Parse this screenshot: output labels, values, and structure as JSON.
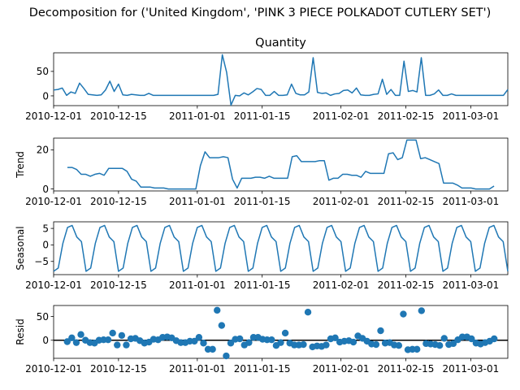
{
  "chart_data": {
    "type": "line",
    "suptitle": "Decomposition for ('United Kingdom', 'PINK 3 PIECE POLKADOT CUTLERY SET')",
    "x_ticks": [
      "2010-12-01",
      "2010-12-15",
      "2011-01-01",
      "2011-01-15",
      "2011-02-01",
      "2011-02-15",
      "2011-03-01"
    ],
    "x_range": [
      "2010-12-01",
      "2011-03-09"
    ],
    "panels": [
      {
        "name": "observed",
        "title": "Quantity",
        "ylabel": "",
        "type": "line",
        "ylim": [
          -20,
          88
        ],
        "yticks": [
          "0",
          "50"
        ],
        "values": [
          12,
          13,
          16,
          1,
          8,
          5,
          26,
          15,
          3,
          2,
          1,
          2,
          12,
          30,
          9,
          24,
          2,
          1,
          3,
          2,
          1,
          1,
          5,
          1,
          1,
          1,
          1,
          1,
          1,
          1,
          1,
          1,
          1,
          1,
          1,
          1,
          1,
          1,
          3,
          84,
          48,
          -19,
          1,
          0,
          6,
          2,
          8,
          15,
          13,
          1,
          1,
          9,
          1,
          1,
          2,
          24,
          5,
          2,
          2,
          8,
          78,
          7,
          5,
          6,
          1,
          4,
          5,
          11,
          12,
          6,
          16,
          2,
          1,
          1,
          3,
          4,
          34,
          3,
          13,
          1,
          1,
          71,
          9,
          11,
          8,
          78,
          1,
          1,
          4,
          12,
          1,
          1,
          4,
          1,
          1,
          1,
          1,
          1,
          1,
          1,
          1,
          1,
          1,
          1,
          1,
          13
        ]
      },
      {
        "name": "trend",
        "title": "",
        "ylabel": "Trend",
        "type": "line",
        "ylim": [
          -1,
          26
        ],
        "yticks": [
          "0",
          "20"
        ],
        "values": [
          null,
          null,
          null,
          11,
          11,
          10,
          7.5,
          7.5,
          6.5,
          7.5,
          8,
          7,
          10.5,
          10.5,
          10.5,
          10.5,
          9,
          5,
          4,
          1,
          1,
          1,
          0.5,
          0.5,
          0.5,
          0,
          0,
          0,
          0,
          0,
          0,
          0,
          12,
          19,
          16,
          16,
          16,
          16.5,
          16,
          5,
          0.5,
          5.5,
          5.5,
          5.5,
          6,
          6,
          5.5,
          6.5,
          5.5,
          5.5,
          5.5,
          5.5,
          16.5,
          17,
          14,
          14,
          14,
          14,
          14.5,
          14.5,
          4.5,
          5.5,
          5.5,
          7.5,
          7.5,
          7,
          7,
          6,
          9,
          8,
          8,
          8,
          8,
          18,
          18.5,
          15,
          16,
          25,
          25,
          25,
          15.5,
          16,
          15,
          14,
          13,
          3,
          3,
          3,
          2,
          0.5,
          0.5,
          0.5,
          0,
          0,
          0,
          0,
          1.5,
          null,
          null,
          null
        ]
      },
      {
        "name": "seasonal",
        "title": "",
        "ylabel": "Seasonal",
        "type": "line",
        "ylim": [
          -9,
          7
        ],
        "yticks": [
          "5",
          "0",
          "−5"
        ],
        "period": 7,
        "pattern": [
          -8,
          -7,
          0.5,
          5.3,
          5.9,
          2.4,
          1
        ]
      },
      {
        "name": "resid",
        "title": "",
        "ylabel": "Resid",
        "type": "scatter",
        "ylim": [
          -38,
          73
        ],
        "yticks": [
          "0",
          "50"
        ],
        "zero_line": true,
        "values": [
          null,
          null,
          null,
          -3,
          5,
          -5,
          12,
          0,
          -5,
          -6,
          0,
          1,
          1,
          15,
          -10,
          10,
          -10,
          3,
          4,
          -1,
          -6,
          -4,
          2,
          1,
          6,
          7,
          5,
          -1,
          -5,
          -5,
          -2,
          -2,
          6,
          -6,
          -19,
          -19,
          63,
          31,
          -33,
          -6,
          2,
          3,
          -10,
          -5,
          6,
          6,
          2,
          1,
          1,
          -11,
          -5,
          15,
          -6,
          -10,
          -10,
          -9,
          59,
          -14,
          -12,
          -13,
          -10,
          3,
          5,
          -4,
          -2,
          -1,
          -4,
          9,
          4,
          -2,
          -8,
          -9,
          20,
          -6,
          -5,
          -10,
          -11,
          55,
          -20,
          -19,
          -19,
          62,
          -7,
          -8,
          -9,
          -11,
          4,
          -9,
          -7,
          1,
          7,
          7,
          3,
          -6,
          -8,
          -5,
          -2,
          3,
          null,
          null,
          null
        ]
      }
    ],
    "series_color": "#1f77b4",
    "grid": false
  }
}
